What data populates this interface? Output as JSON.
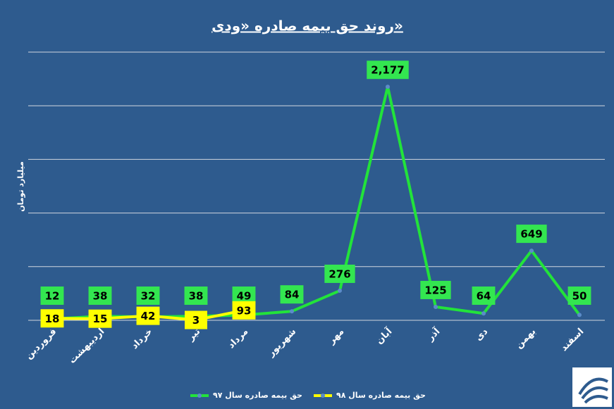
{
  "chart_data": {
    "type": "line",
    "title": "روند حق بیمه صادره «ودی»",
    "ylabel": "میلیارد تومان",
    "categories": [
      "فروردین",
      "اردیبهشت",
      "خرداد",
      "تیر",
      "مرداد",
      "شهریور",
      "مهر",
      "آبان",
      "آذر",
      "دی",
      "بهمن",
      "اسفند"
    ],
    "series": [
      {
        "name": "حق بیمه صادره سال ۹۷",
        "color": "#22e33a",
        "label_color": "#33e650",
        "values": [
          12,
          38,
          32,
          38,
          49,
          84,
          276,
          2177,
          125,
          64,
          649,
          50
        ],
        "value_labels": [
          "12",
          "38",
          "32",
          "38",
          "49",
          "84",
          "276",
          "2,177",
          "125",
          "64",
          "649",
          "50"
        ]
      },
      {
        "name": "حق بیمه صادره سال ۹۸",
        "color": "#ffff00",
        "label_color": "#ffff00",
        "values": [
          18,
          15,
          42,
          3,
          93,
          null,
          null,
          null,
          null,
          null,
          null,
          null
        ]
      }
    ],
    "ylim": [
      0,
      2500
    ],
    "yticks": [
      0,
      500,
      1000,
      1500,
      2000,
      2500
    ],
    "grid": true,
    "legend": "bottom"
  }
}
